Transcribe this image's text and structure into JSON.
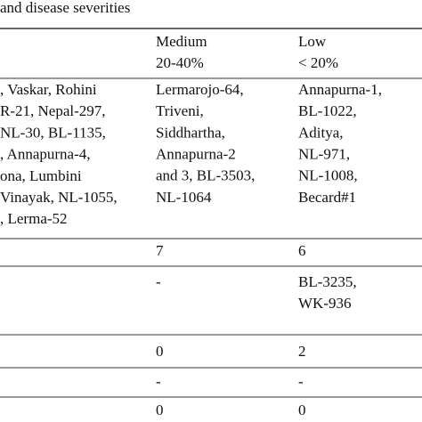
{
  "caption": "and disease severities",
  "header": [
    {
      "title": "Medium",
      "range": "20-40%"
    },
    {
      "title": "Low",
      "range": "< 20%"
    }
  ],
  "rows": [
    {
      "varieties": ", Vaskar, Rohini|R-21, Nepal-297,|NL-30, BL-1135,|, Annapurna-4,|ona, Lumbini|Vinayak, NL-1055,|, Lerma-52",
      "medium": [
        "Lermarojo-64,",
        "Triveni,",
        "Siddhartha,",
        "Annapurna-2",
        "and 3, BL-3503,",
        "NL-1064"
      ],
      "low": [
        "Annapurna-1,",
        "BL-1022,",
        "Aditya,",
        "NL-971,",
        "NL-1008,",
        "Becard#1"
      ]
    },
    {
      "medium": [
        "7"
      ],
      "low": [
        "6"
      ]
    },
    {
      "medium": [
        "-"
      ],
      "low": [
        "BL-3235,",
        "WK-936"
      ]
    },
    {
      "medium": [
        "0"
      ],
      "low": [
        "2"
      ]
    },
    {
      "medium": [
        "-"
      ],
      "low": [
        "-"
      ]
    },
    {
      "medium": [
        "0"
      ],
      "low": [
        "0"
      ]
    }
  ]
}
